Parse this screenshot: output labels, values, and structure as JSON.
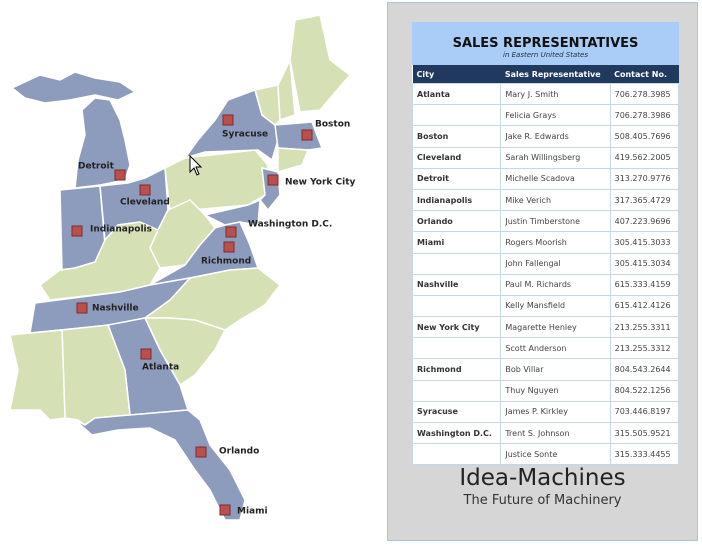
{
  "map": {
    "cities": [
      {
        "label": "Syracuse"
      },
      {
        "label": "Boston"
      },
      {
        "label": "Detroit"
      },
      {
        "label": "Cleveland"
      },
      {
        "label": "New York City"
      },
      {
        "label": "Indianapolis"
      },
      {
        "label": "Washington D.C."
      },
      {
        "label": "Richmond"
      },
      {
        "label": "Nashville"
      },
      {
        "label": "Atlanta"
      },
      {
        "label": "Orlando"
      },
      {
        "label": "Miami"
      }
    ]
  },
  "table": {
    "title": "SALES REPRESENTATIVES",
    "subtitle": "in Eastern United States",
    "columns": [
      "City",
      "Sales Representative",
      "Contact No."
    ],
    "groups": [
      {
        "city": "Atlanta",
        "reps": [
          {
            "name": "Mary J. Smith",
            "phone": "706.278.3985"
          },
          {
            "name": "Felicia Grays",
            "phone": "706.278.3986"
          }
        ]
      },
      {
        "city": "Boston",
        "reps": [
          {
            "name": "Jake R. Edwards",
            "phone": "508.405.7696"
          }
        ]
      },
      {
        "city": "Cleveland",
        "reps": [
          {
            "name": "Sarah Willingsberg",
            "phone": "419.562.2005"
          }
        ]
      },
      {
        "city": "Detroit",
        "reps": [
          {
            "name": "Michelle Scadova",
            "phone": "313.270.9776"
          }
        ]
      },
      {
        "city": "Indianapolis",
        "reps": [
          {
            "name": "Mike Verich",
            "phone": "317.365.4729"
          }
        ]
      },
      {
        "city": "Orlando",
        "reps": [
          {
            "name": "Justin Timberstone",
            "phone": "407.223.9696"
          }
        ]
      },
      {
        "city": "Miami",
        "reps": [
          {
            "name": "Rogers Moorish",
            "phone": "305.415.3033"
          },
          {
            "name": "John Fallengal",
            "phone": "305.415.3034"
          }
        ]
      },
      {
        "city": "Nashville",
        "reps": [
          {
            "name": "Paul M. Richards",
            "phone": "615.333.4159"
          },
          {
            "name": "Kelly Mansfield",
            "phone": "615.412.4126"
          }
        ]
      },
      {
        "city": "New York City",
        "reps": [
          {
            "name": "Magarette Henley",
            "phone": "213.255.3311"
          },
          {
            "name": "Scott Anderson",
            "phone": "213.255.3312"
          }
        ]
      },
      {
        "city": "Richmond",
        "reps": [
          {
            "name": "Bob Villar",
            "phone": "804.543.2644"
          },
          {
            "name": "Thuy Nguyen",
            "phone": "804.522.1256"
          }
        ]
      },
      {
        "city": "Syracuse",
        "reps": [
          {
            "name": "James P. Kirkley",
            "phone": "703.446.8197"
          }
        ]
      },
      {
        "city": "Washington D.C.",
        "reps": [
          {
            "name": "Trent S. Johnson",
            "phone": "315.505.9521"
          },
          {
            "name": "Justice Sonte",
            "phone": "315.333.4455"
          }
        ]
      }
    ]
  },
  "brand": {
    "name": "Idea-Machines",
    "tagline": "The Future of Machinery"
  }
}
